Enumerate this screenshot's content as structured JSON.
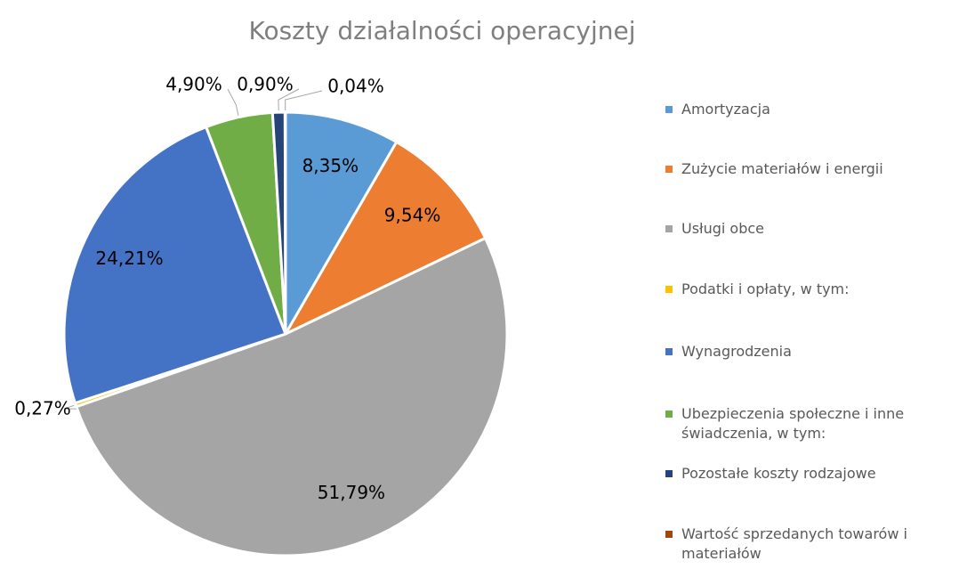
{
  "chart_data": {
    "type": "pie",
    "title": "Koszty działalności operacyjnej",
    "categories": [
      "Amortyzacja",
      "Zużycie materiałów i energii",
      "Usługi obce",
      "Podatki i opłaty, w tym:",
      "Wynagrodzenia",
      "Ubezpieczenia społeczne i inne świadczenia, w tym:",
      "Pozostałe koszty rodzajowe",
      "Wartość sprzedanych towarów i materiałów"
    ],
    "values": [
      8.35,
      9.54,
      51.79,
      0.27,
      24.21,
      4.9,
      0.9,
      0.04
    ],
    "value_labels": [
      "8,35%",
      "9,54%",
      "51,79%",
      "0,27%",
      "24,21%",
      "4,90%",
      "0,90%",
      "0,04%"
    ],
    "colors": [
      "#5b9bd5",
      "#ed7d31",
      "#a5a5a5",
      "#ffc000",
      "#4472c4",
      "#70ad47",
      "#264478",
      "#9e480e"
    ],
    "legend": "right"
  }
}
